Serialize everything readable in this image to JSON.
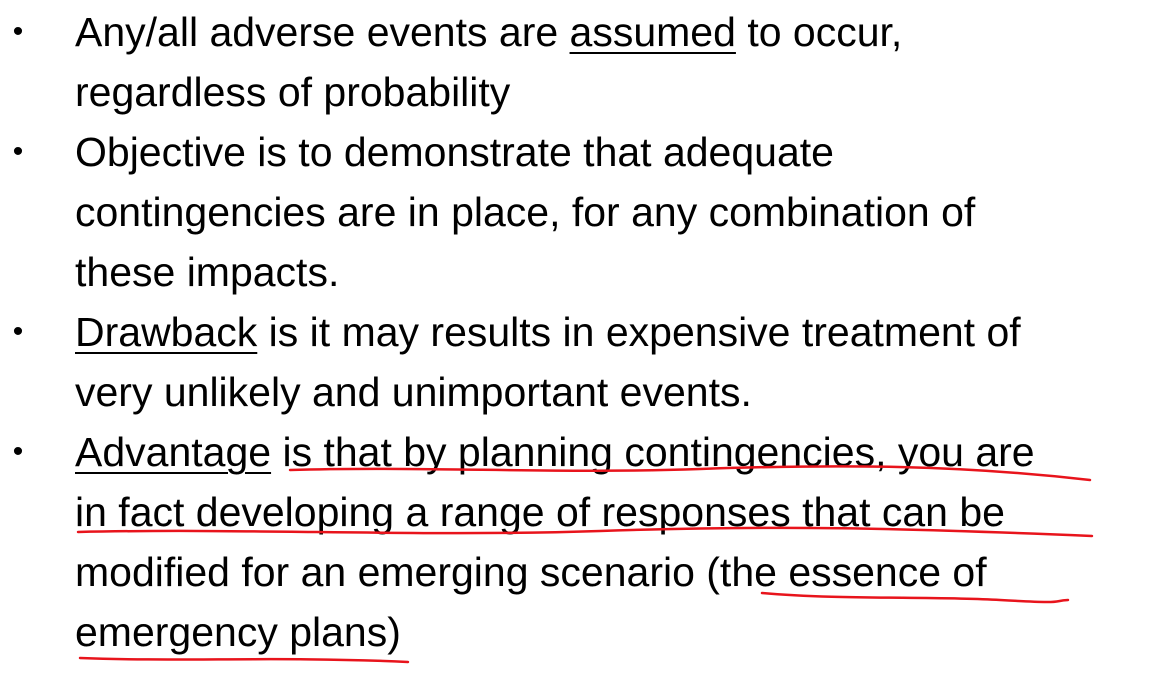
{
  "bullets": [
    {
      "lines": [
        {
          "pre": "Any/all adverse events are ",
          "u": "assumed",
          "post": " to occur,"
        },
        {
          "text": "regardless of probability"
        }
      ]
    },
    {
      "lines": [
        {
          "text": "Objective is to demonstrate that adequate"
        },
        {
          "text": "contingencies are in place, for any combination of"
        },
        {
          "text": "these impacts."
        }
      ]
    },
    {
      "lines": [
        {
          "u": "Drawback",
          "post": " is it may results in expensive treatment of"
        },
        {
          "text": "very unlikely and unimportant events."
        }
      ]
    },
    {
      "lines": [
        {
          "u": "Advantage",
          "post": " is that by planning contingencies, you are"
        },
        {
          "text": "in fact developing a range of responses that can be"
        },
        {
          "text": "modified for an emerging scenario (the essence of"
        },
        {
          "text": "emergency plans)"
        }
      ]
    }
  ],
  "bullet_char": "•",
  "annotation_color": "#e8141c"
}
